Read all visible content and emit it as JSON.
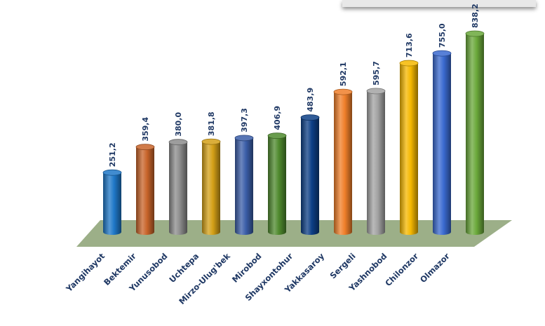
{
  "chart_data": {
    "type": "bar",
    "categories": [
      "Yangihayot",
      "Bektemir",
      "Yunusobod",
      "Uchtepa",
      "Mirzo-Ulug'bek",
      "Mirobod",
      "Shayxontohur",
      "Yakkasaroy",
      "Sergeli",
      "Yashnobod",
      "Chilonzor",
      "Olmazor"
    ],
    "values": [
      251.2,
      359.4,
      380.0,
      381.8,
      397.3,
      406.9,
      483.9,
      592.1,
      595.7,
      713.6,
      755.0,
      838.2
    ],
    "value_labels": [
      "251,2",
      "359,4",
      "380,0",
      "381,8",
      "397,3",
      "406,9",
      "483,9",
      "592,1",
      "595,7",
      "713,6",
      "755,0",
      "838,2"
    ],
    "bar_colors": [
      "#1f78c8",
      "#c8642a",
      "#8c8c8c",
      "#d4a017",
      "#3b5ea8",
      "#4f8a2e",
      "#0d3f86",
      "#f07f2a",
      "#a3a3a3",
      "#f5b800",
      "#3a6ad0",
      "#6aa83a"
    ],
    "floor_color": "#9caf88",
    "ylim": [
      0,
      838.2
    ],
    "legend": "none",
    "grid": false
  }
}
